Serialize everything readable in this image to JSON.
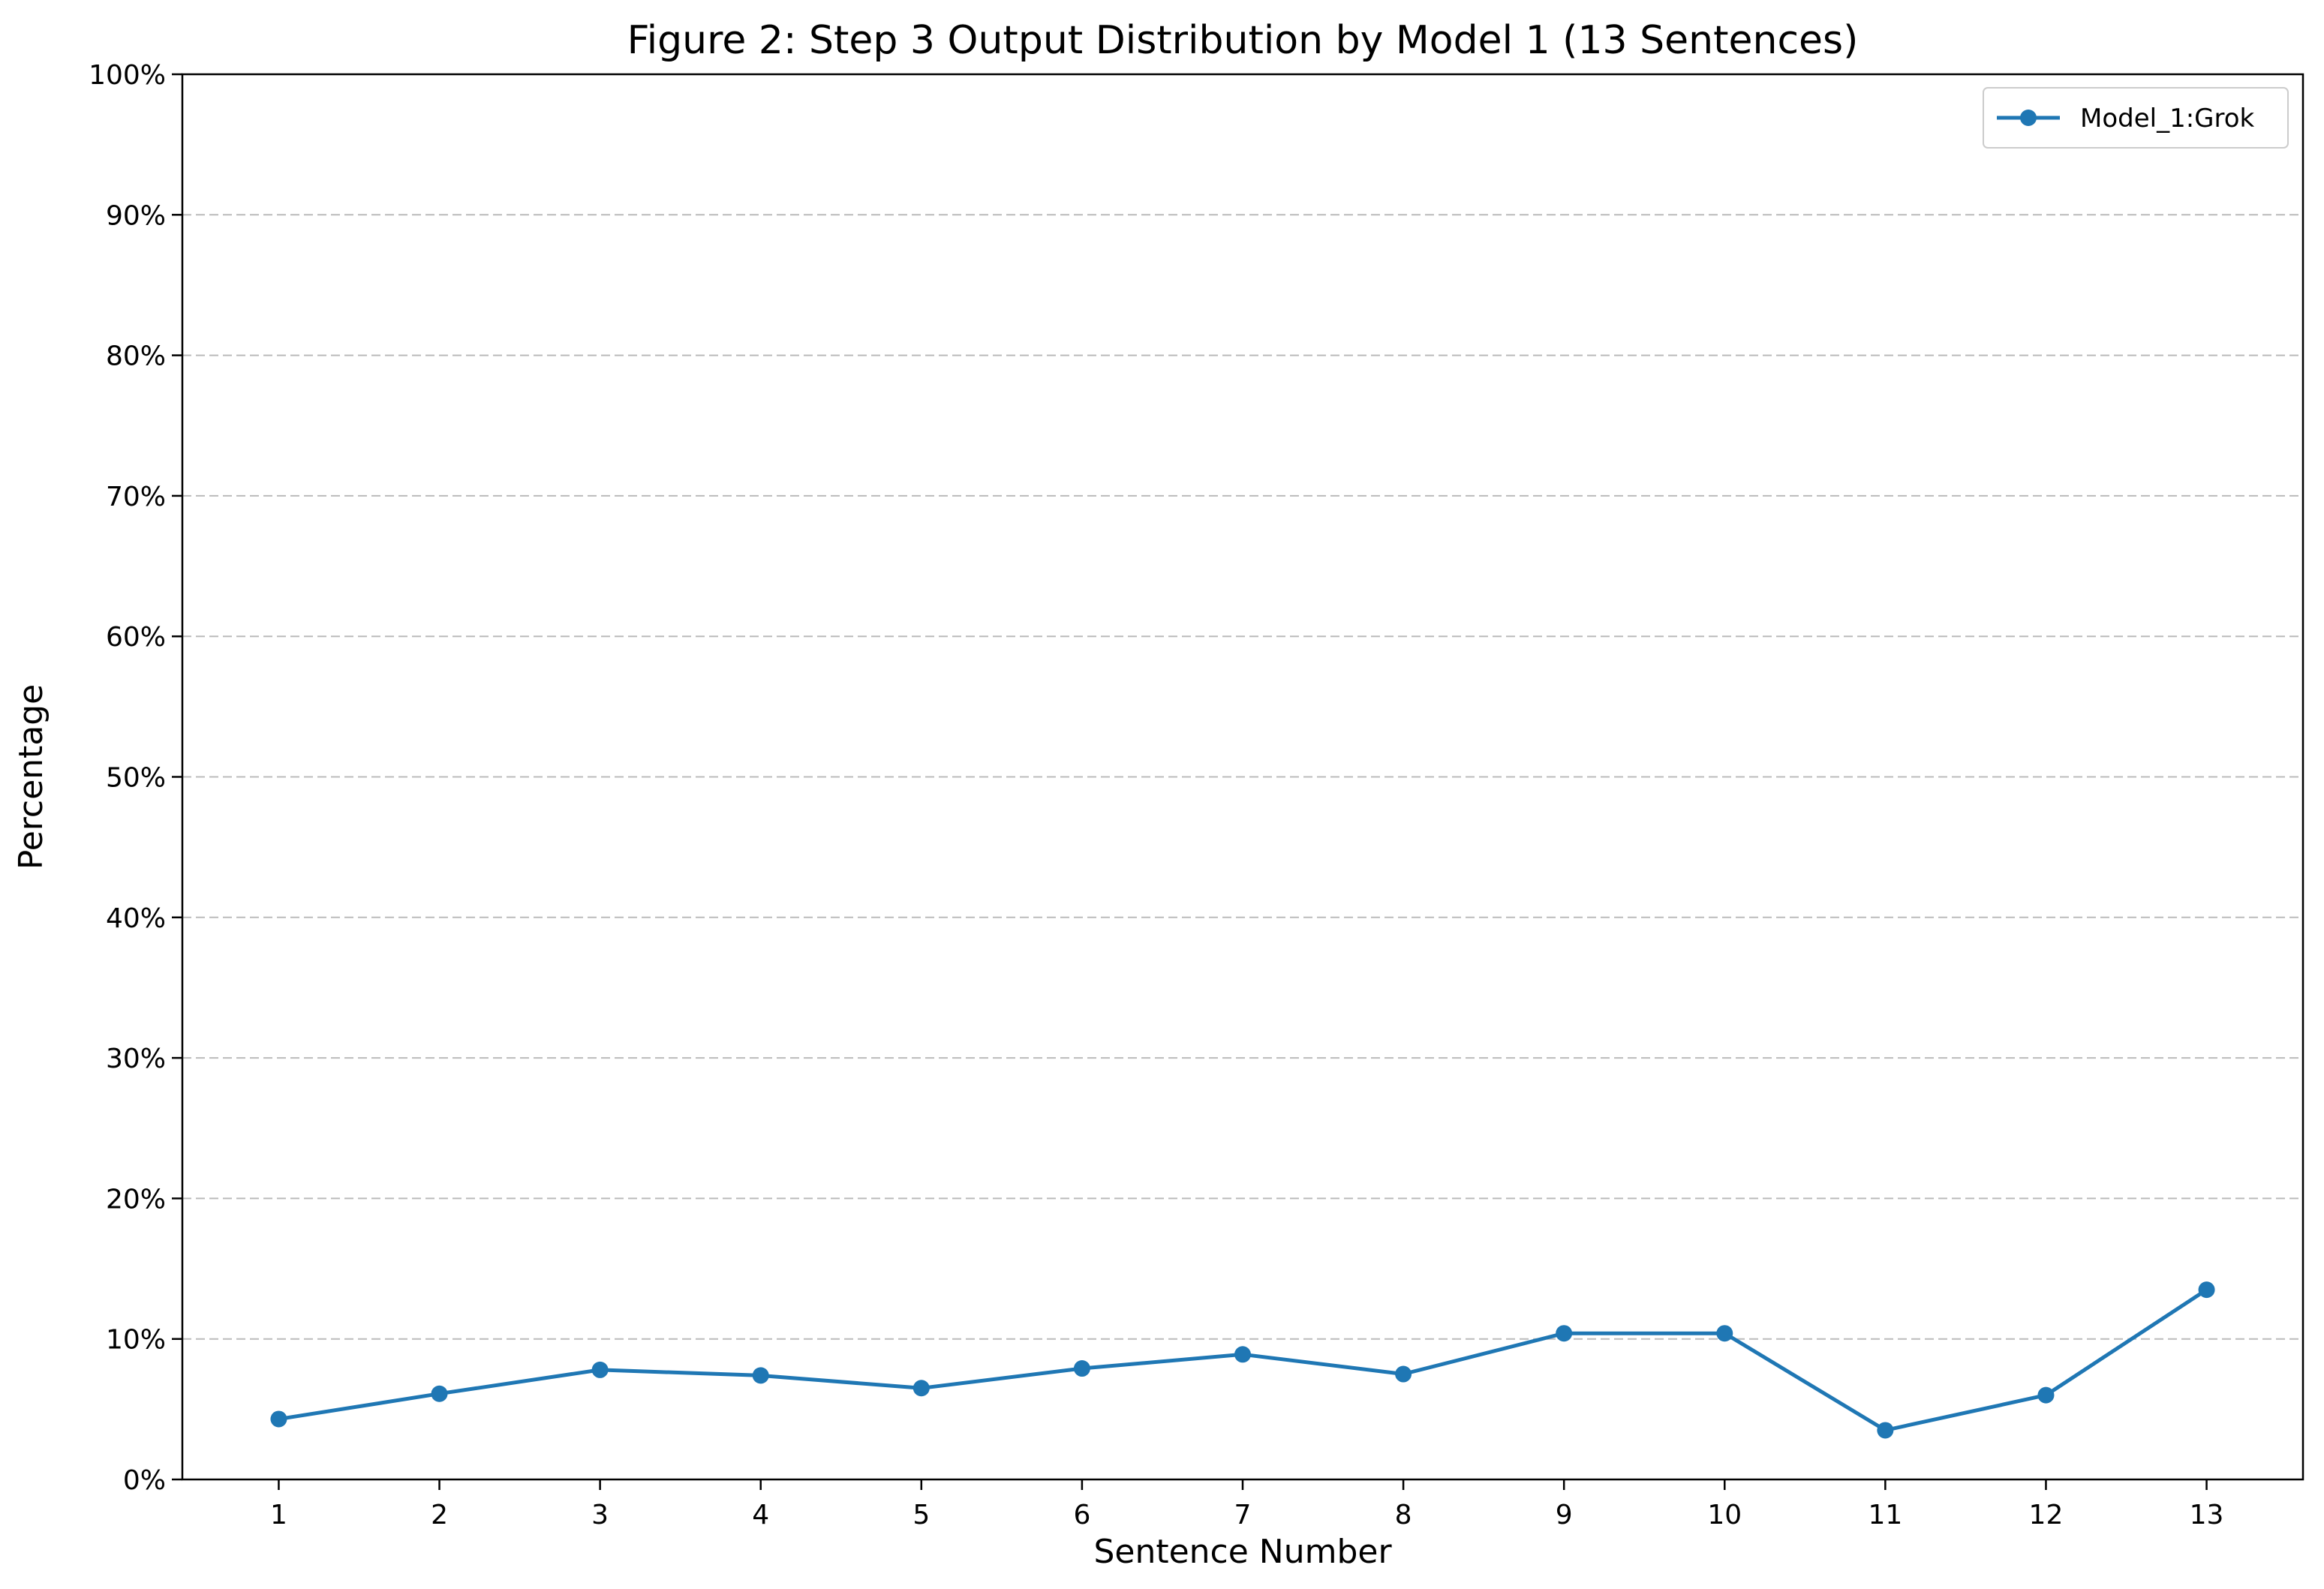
{
  "chart_data": {
    "type": "line",
    "title": "Figure 2: Step 3 Output Distribution by Model 1 (13 Sentences)",
    "xlabel": "Sentence Number",
    "ylabel": "Percentage",
    "x": [
      1,
      2,
      3,
      4,
      5,
      6,
      7,
      8,
      9,
      10,
      11,
      12,
      13
    ],
    "x_tick_labels": [
      "1",
      "2",
      "3",
      "4",
      "5",
      "6",
      "7",
      "8",
      "9",
      "10",
      "11",
      "12",
      "13"
    ],
    "y_ticks": [
      0,
      10,
      20,
      30,
      40,
      50,
      60,
      70,
      80,
      90,
      100
    ],
    "y_tick_labels": [
      "0%",
      "10%",
      "20%",
      "30%",
      "40%",
      "50%",
      "60%",
      "70%",
      "80%",
      "90%",
      "100%"
    ],
    "xlim": [
      0.4,
      13.6
    ],
    "ylim": [
      0,
      100
    ],
    "grid": "horizontal dashed",
    "legend_position": "top-right",
    "series": [
      {
        "name": "Model_1:Grok",
        "color": "#1f77b4",
        "values": [
          4.3,
          6.1,
          7.8,
          7.4,
          6.5,
          7.9,
          8.9,
          7.5,
          10.4,
          10.4,
          3.5,
          6.0,
          13.5
        ]
      }
    ]
  }
}
